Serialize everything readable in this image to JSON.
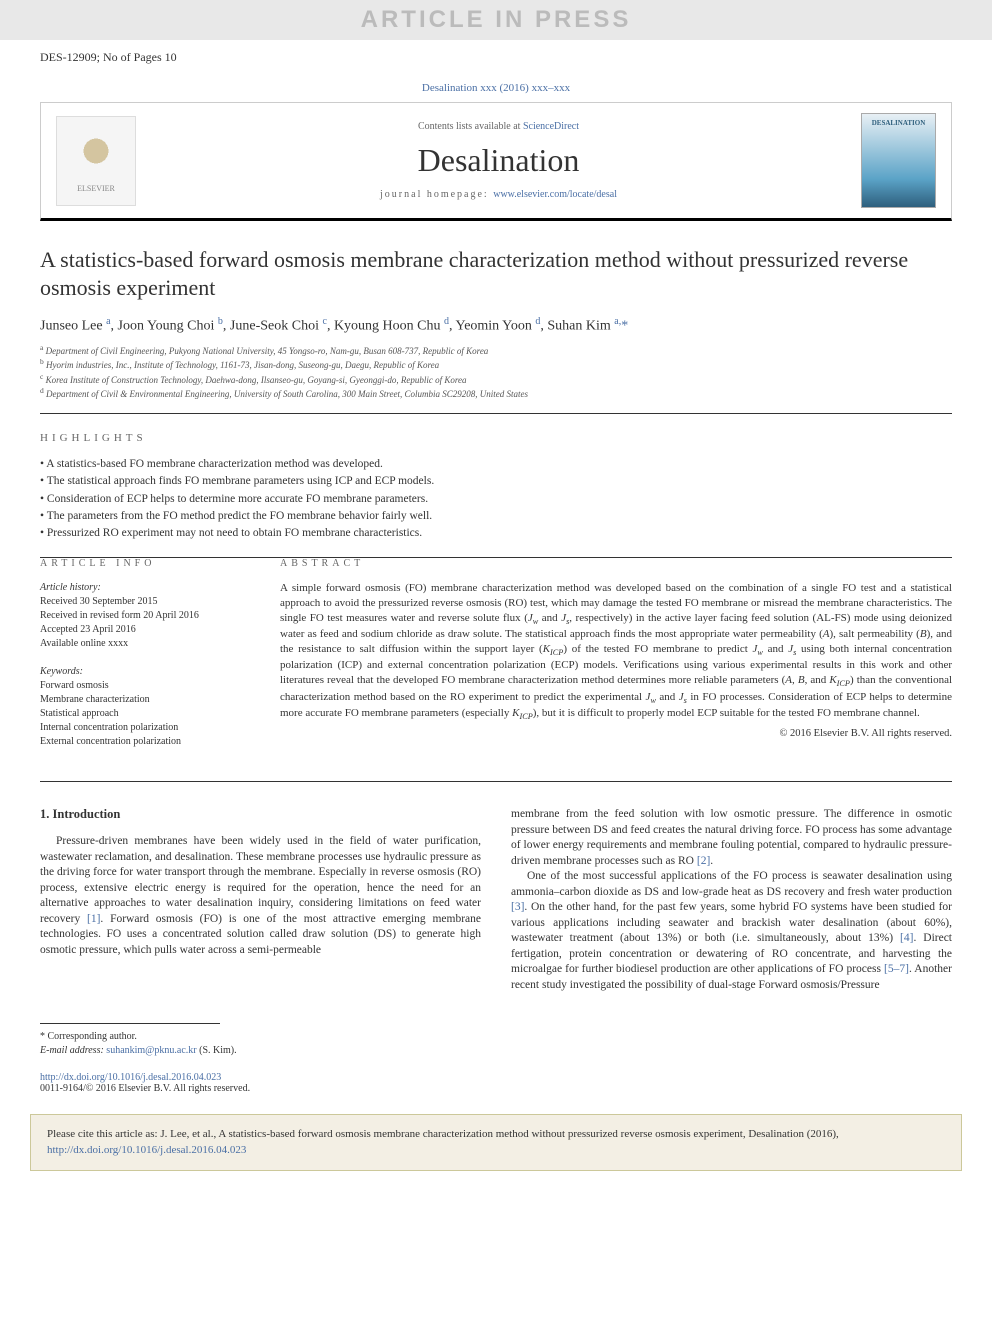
{
  "watermark": "ARTICLE IN PRESS",
  "doc_id": "DES-12909; No of Pages 10",
  "journal_ref_text": "Desalination xxx (2016) xxx–xxx",
  "header": {
    "contents_text": "Contents lists available at ",
    "contents_link": "ScienceDirect",
    "journal_name": "Desalination",
    "homepage_label": "journal homepage: ",
    "homepage_url": "www.elsevier.com/locate/desal",
    "publisher": "ELSEVIER",
    "cover_title": "DESALINATION"
  },
  "title": "A statistics-based forward osmosis membrane characterization method without pressurized reverse osmosis experiment",
  "authors_html": "Junseo Lee <sup>a</sup>, Joon Young Choi <sup>b</sup>, June-Seok Choi <sup>c</sup>, Kyoung Hoon Chu <sup>d</sup>, Yeomin Yoon <sup>d</sup>, Suhan Kim <sup>a,</sup><span class='corr'>*</span>",
  "affiliations": [
    "<sup>a</sup> Department of Civil Engineering, Pukyong National University, 45 Yongso-ro, Nam-gu, Busan 608-737, Republic of Korea",
    "<sup>b</sup> Hyorim industries, Inc., Institute of Technology, 1161-73, Jisan-dong, Suseong-gu, Daegu, Republic of Korea",
    "<sup>c</sup> Korea Institute of Construction Technology, Daehwa-dong, Ilsanseo-gu, Goyang-si, Gyeonggi-do, Republic of Korea",
    "<sup>d</sup> Department of Civil & Environmental Engineering, University of South Carolina, 300 Main Street, Columbia SC29208, United States"
  ],
  "highlights_label": "HIGHLIGHTS",
  "highlights": [
    "A statistics-based FO membrane characterization method was developed.",
    "The statistical approach finds FO membrane parameters using ICP and ECP models.",
    "Consideration of ECP helps to determine more accurate FO membrane parameters.",
    "The parameters from the FO method predict the FO membrane behavior fairly well.",
    "Pressurized RO experiment may not need to obtain FO membrane characteristics."
  ],
  "article_info": {
    "heading": "ARTICLE INFO",
    "history_label": "Article history:",
    "history": [
      "Received 30 September 2015",
      "Received in revised form 20 April 2016",
      "Accepted 23 April 2016",
      "Available online xxxx"
    ],
    "keywords_label": "Keywords:",
    "keywords": [
      "Forward osmosis",
      "Membrane characterization",
      "Statistical approach",
      "Internal concentration polarization",
      "External concentration polarization"
    ]
  },
  "abstract": {
    "heading": "ABSTRACT",
    "text": "A simple forward osmosis (FO) membrane characterization method was developed based on the combination of a single FO test and a statistical approach to avoid the pressurized reverse osmosis (RO) test, which may damage the tested FO membrane or misread the membrane characteristics. The single FO test measures water and reverse solute flux (<i>J<sub>w</sub></i> and <i>J<sub>s</sub></i>, respectively) in the active layer facing feed solution (AL-FS) mode using deionized water as feed and sodium chloride as draw solute. The statistical approach finds the most appropriate water permeability (<i>A</i>), salt permeability (<i>B</i>), and the resistance to salt diffusion within the support layer (<i>K<sub>ICP</sub></i>) of the tested FO membrane to predict <i>J<sub>w</sub></i> and <i>J<sub>s</sub></i> using both internal concentration polarization (ICP) and external concentration polarization (ECP) models. Verifications using various experimental results in this work and other literatures reveal that the developed FO membrane characterization method determines more reliable parameters (<i>A</i>, <i>B</i>, and <i>K<sub>ICP</sub></i>) than the conventional characterization method based on the RO experiment to predict the experimental <i>J<sub>w</sub></i> and <i>J<sub>s</sub></i> in FO processes. Consideration of ECP helps to determine more accurate FO membrane parameters (especially <i>K<sub>ICP</sub></i>), but it is difficult to properly model ECP suitable for the tested FO membrane channel.",
    "copyright": "© 2016 Elsevier B.V. All rights reserved."
  },
  "body": {
    "section_heading": "1. Introduction",
    "left_paras": [
      "Pressure-driven membranes have been widely used in the field of water purification, wastewater reclamation, and desalination. These membrane processes use hydraulic pressure as the driving force for water transport through the membrane. Especially in reverse osmosis (RO) process, extensive electric energy is required for the operation, hence the need for an alternative approaches to water desalination inquiry, considering limitations on feed water recovery <span class='cite'>[1]</span>. Forward osmosis (FO) is one of the most attractive emerging membrane technologies. FO uses a concentrated solution called draw solution (DS) to generate high osmotic pressure, which pulls water across a semi-permeable"
    ],
    "right_paras": [
      "membrane from the feed solution with low osmotic pressure. The difference in osmotic pressure between DS and feed creates the natural driving force. FO process has some advantage of lower energy requirements and membrane fouling potential, compared to hydraulic pressure-driven membrane processes such as RO <span class='cite'>[2]</span>.",
      "One of the most successful applications of the FO process is seawater desalination using ammonia–carbon dioxide as DS and low-grade heat as DS recovery and fresh water production <span class='cite'>[3]</span>. On the other hand, for the past few years, some hybrid FO systems have been studied for various applications including seawater and brackish water desalination (about 60%), wastewater treatment (about 13%) or both (i.e. simultaneously, about 13%) <span class='cite'>[4]</span>. Direct fertigation, protein concentration or dewatering of RO concentrate, and harvesting the microalgae for further biodiesel production are other applications of FO process <span class='cite'>[5–7]</span>. Another recent study investigated the possibility of dual-stage Forward osmosis/Pressure"
    ]
  },
  "corr": {
    "label": "* Corresponding author.",
    "email_label": "E-mail address: ",
    "email": "suhankim@pknu.ac.kr",
    "name": " (S. Kim)."
  },
  "doi": {
    "url": "http://dx.doi.org/10.1016/j.desal.2016.04.023",
    "issn": "0011-9164/© 2016 Elsevier B.V. All rights reserved."
  },
  "cite_box": {
    "text": "Please cite this article as: J. Lee, et al., A statistics-based forward osmosis membrane characterization method without pressurized reverse osmosis experiment, Desalination (2016), ",
    "url": "http://dx.doi.org/10.1016/j.desal.2016.04.023"
  },
  "colors": {
    "link": "#4a6fa5",
    "watermark_bg": "#e8e8e8",
    "watermark_fg": "#bbbbbb",
    "citebox_bg": "#f3efe4",
    "citebox_border": "#ccc89a"
  }
}
